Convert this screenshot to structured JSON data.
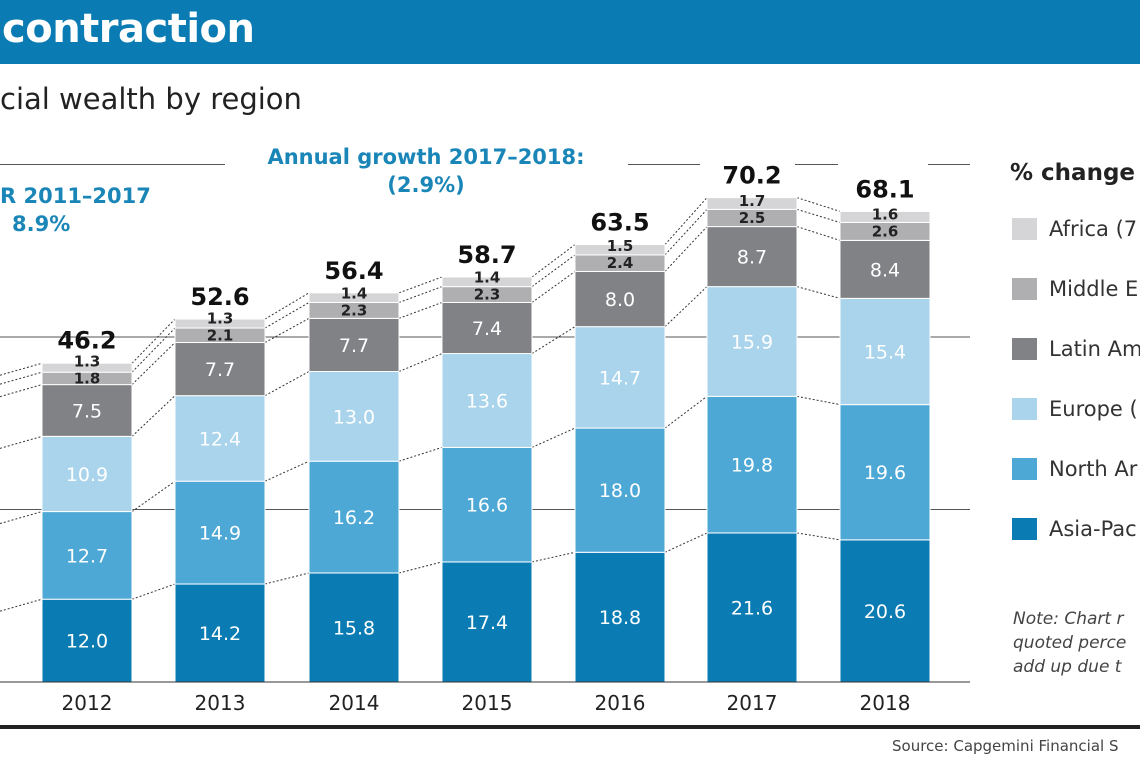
{
  "header": {
    "title": "contraction"
  },
  "subtitle": "cial wealth by region",
  "annotations": {
    "cagr_label": "R 2011–2017",
    "cagr_value": "8.9%",
    "annual_label": "Annual growth 2017–2018:",
    "annual_value": "(2.9%)"
  },
  "legend": {
    "title": "% change",
    "items": [
      {
        "label": "Africa (7",
        "color": "#d5d5d7"
      },
      {
        "label": "Middle E",
        "color": "#afafb1"
      },
      {
        "label": "Latin Am",
        "color": "#818285"
      },
      {
        "label": "Europe (",
        "color": "#a9d4ec"
      },
      {
        "label": "North Ar",
        "color": "#4ea8d6"
      },
      {
        "label": "Asia-Pac",
        "color": "#0b7cb3"
      }
    ]
  },
  "note": [
    "Note: Chart r",
    "quoted perce",
    "add up due t"
  ],
  "source": "Source: Capgemini Financial S",
  "chart_data": {
    "type": "bar",
    "stacked": true,
    "categories": [
      "2012",
      "2013",
      "2014",
      "2015",
      "2016",
      "2017",
      "2018"
    ],
    "series": [
      {
        "name": "Asia-Pac",
        "color": "#0b7cb3",
        "label_color": "#ffffff",
        "values": [
          12.0,
          14.2,
          15.8,
          17.4,
          18.8,
          21.6,
          20.6
        ]
      },
      {
        "name": "North Ar",
        "color": "#4ea8d6",
        "label_color": "#ffffff",
        "values": [
          12.7,
          14.9,
          16.2,
          16.6,
          18.0,
          19.8,
          19.6
        ]
      },
      {
        "name": "Europe (",
        "color": "#a9d4ec",
        "label_color": "#ffffff",
        "values": [
          10.9,
          12.4,
          13.0,
          13.6,
          14.7,
          15.9,
          15.4
        ]
      },
      {
        "name": "Latin Am",
        "color": "#818285",
        "label_color": "#ffffff",
        "values": [
          7.5,
          7.7,
          7.7,
          7.4,
          8.0,
          8.7,
          8.4
        ]
      },
      {
        "name": "Middle E",
        "color": "#afafb1",
        "label_color": "#222222",
        "values": [
          1.8,
          2.1,
          2.3,
          2.3,
          2.4,
          2.5,
          2.6
        ]
      },
      {
        "name": "Africa (7",
        "color": "#d5d5d7",
        "label_color": "#222222",
        "values": [
          1.3,
          1.3,
          1.4,
          1.4,
          1.5,
          1.7,
          1.6
        ]
      }
    ],
    "totals": [
      "46.2",
      "52.6",
      "56.4",
      "58.7",
      "63.5",
      "70.2",
      "68.1"
    ],
    "ylim": [
      0,
      75
    ],
    "gridlines": [
      25,
      50,
      75
    ],
    "legend_position": "right"
  }
}
